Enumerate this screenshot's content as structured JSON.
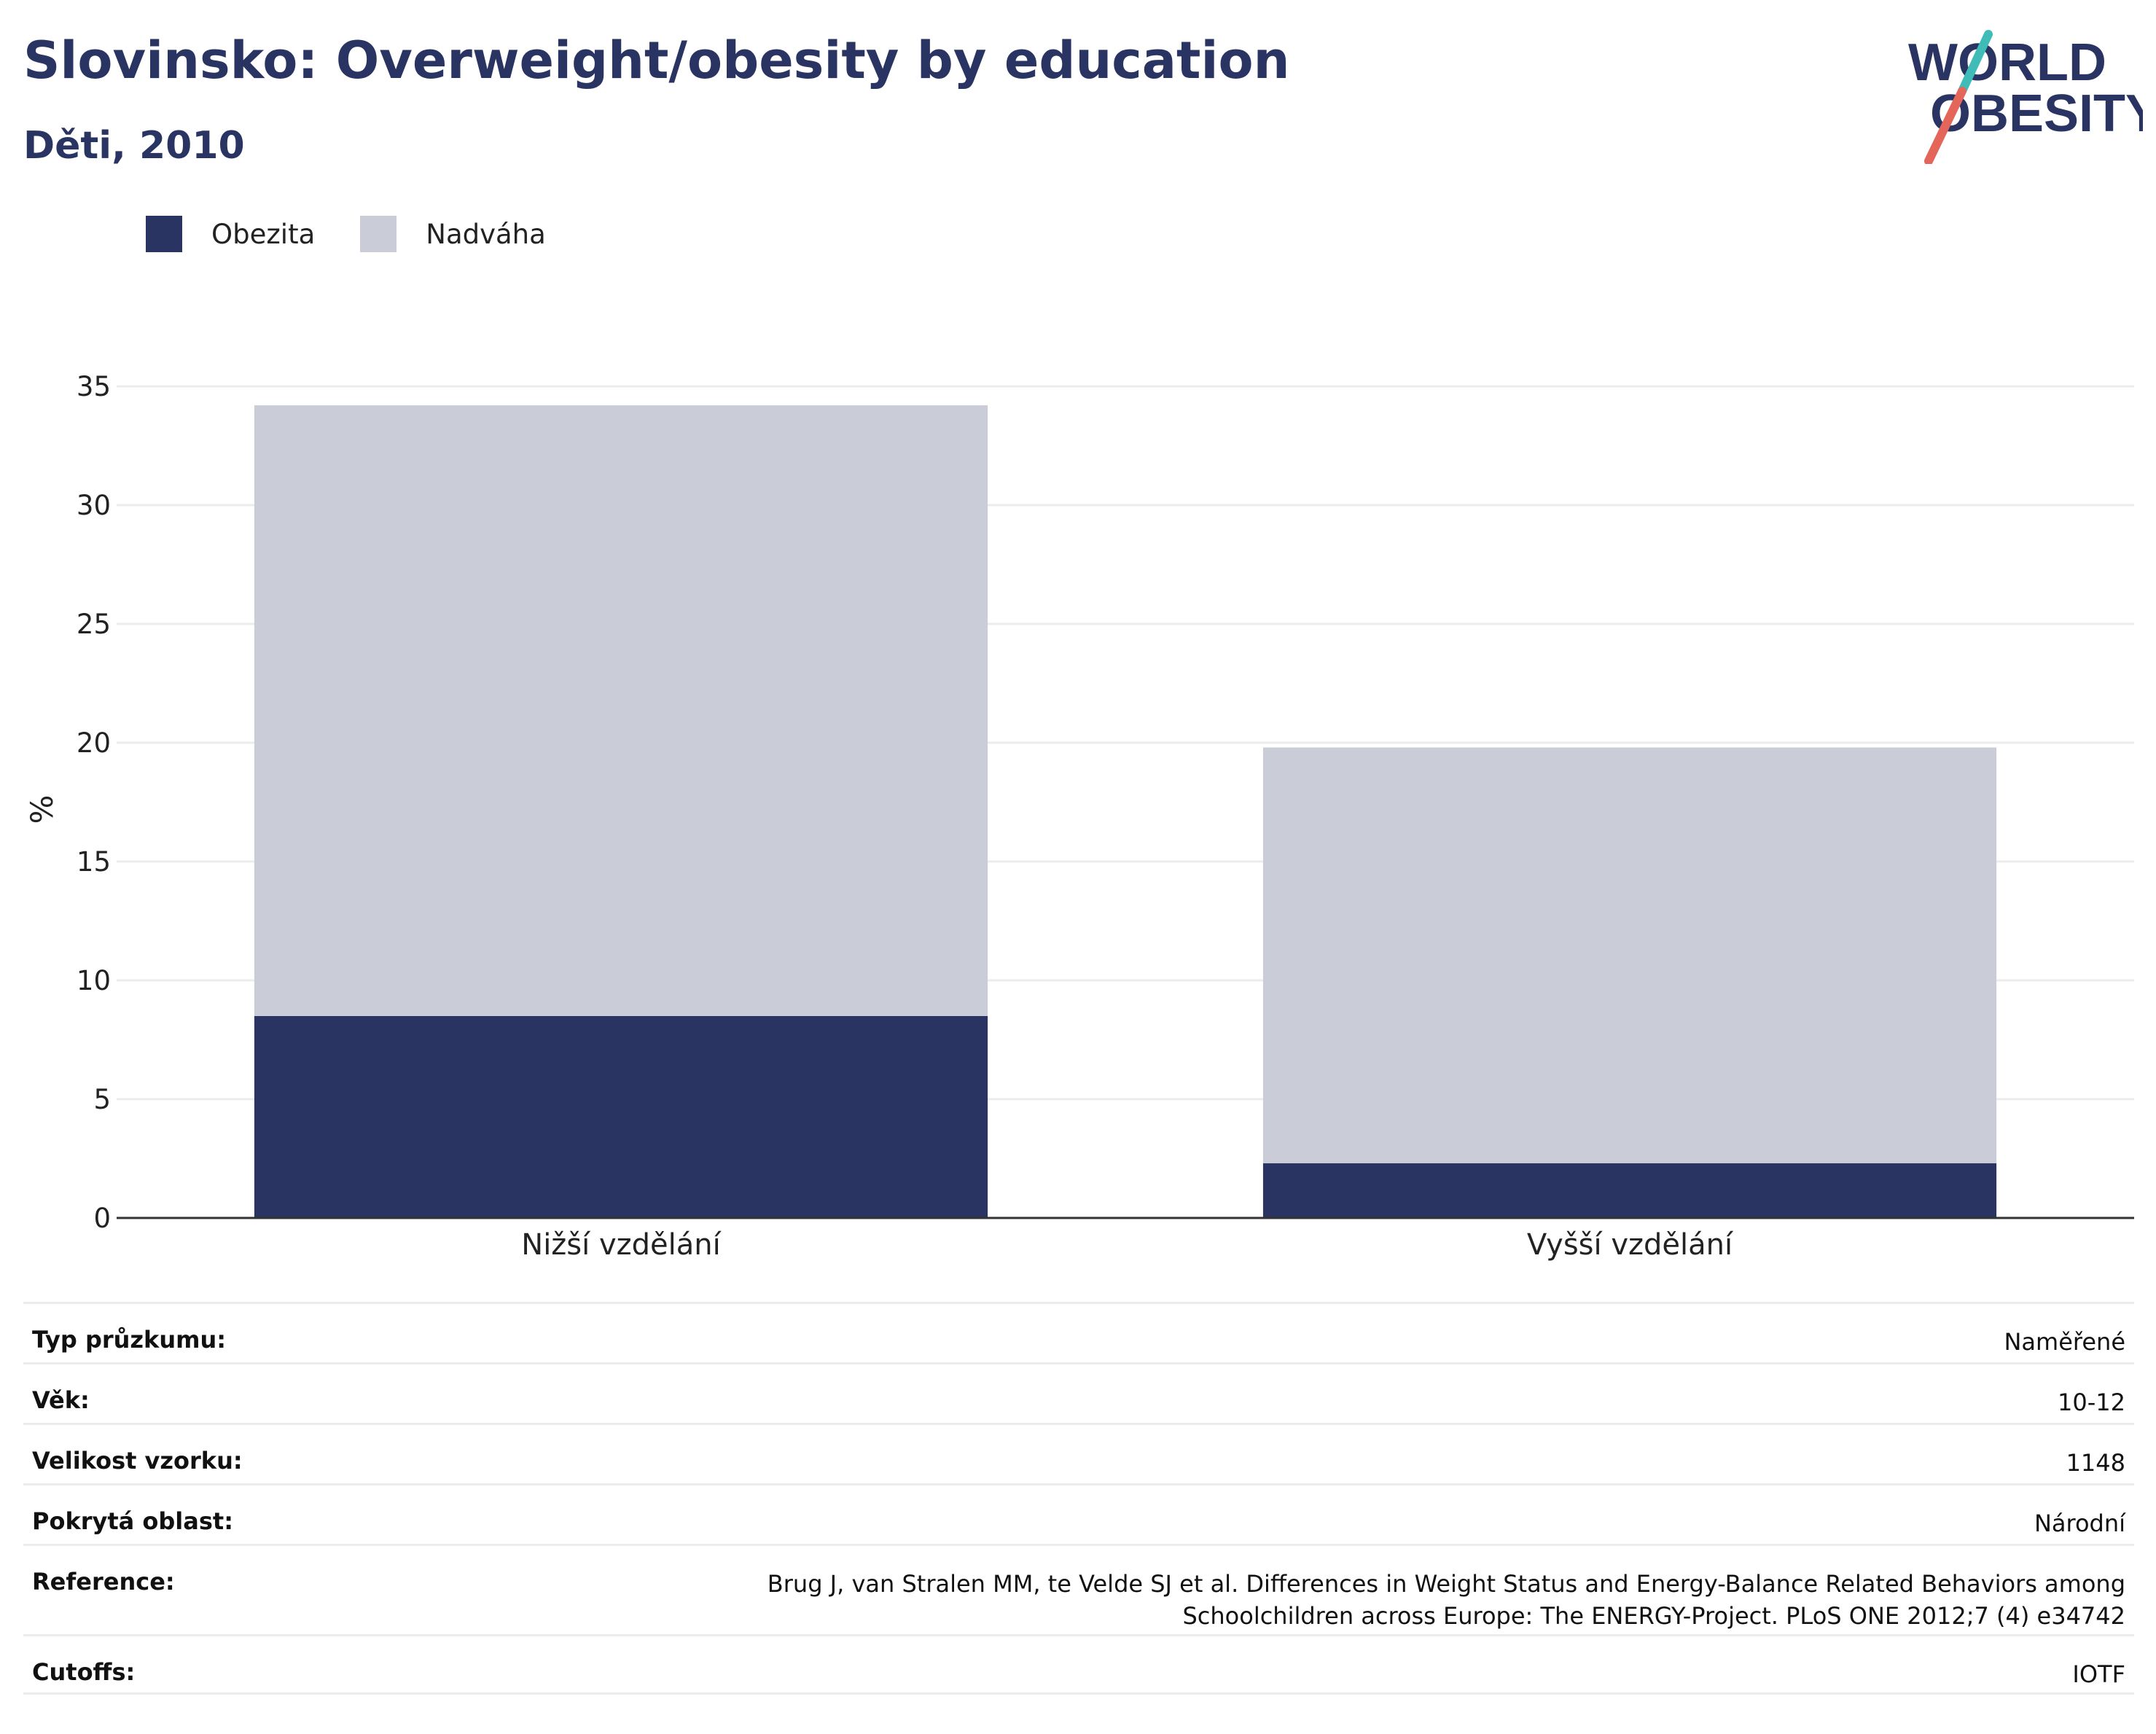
{
  "header": {
    "title": "Slovinsko: Overweight/obesity by education",
    "subtitle": "Děti, 2010"
  },
  "logo": {
    "line1": "WORLD",
    "line2": "OBESITY",
    "colors": {
      "text": "#293462",
      "slash_teal": "#3fbcb8",
      "slash_red": "#e4665a"
    }
  },
  "colors": {
    "obezita": "#293462",
    "nadvaha": "#cacdd8",
    "grid": "#ececec",
    "axis": "#333333"
  },
  "chart_data": {
    "type": "bar",
    "stacked": true,
    "categories": [
      "Nižší vzdělání",
      "Vyšší vzdělání"
    ],
    "series": [
      {
        "name": "Obezita",
        "values": [
          8.5,
          2.3
        ]
      },
      {
        "name": "Nadváha",
        "values": [
          25.7,
          17.5
        ]
      }
    ],
    "ylabel": "%",
    "ylim": [
      0,
      35
    ],
    "yticks": [
      0,
      5,
      10,
      15,
      20,
      25,
      30,
      35
    ],
    "grid": true,
    "legend_position": "top-left"
  },
  "info": [
    {
      "key": "Typ průzkumu:",
      "value": "Naměřené"
    },
    {
      "key": "Věk:",
      "value": "10-12"
    },
    {
      "key": "Velikost vzorku:",
      "value": "1148"
    },
    {
      "key": "Pokrytá oblast:",
      "value": "Národní"
    },
    {
      "key": "Reference:",
      "value": "Brug J, van Stralen MM, te Velde SJ et al. Differences in Weight Status and Energy-Balance Related Behaviors among Schoolchildren across Europe: The ENERGY-Project. PLoS ONE 2012;7 (4) e34742"
    },
    {
      "key": "Cutoffs:",
      "value": "IOTF"
    }
  ]
}
